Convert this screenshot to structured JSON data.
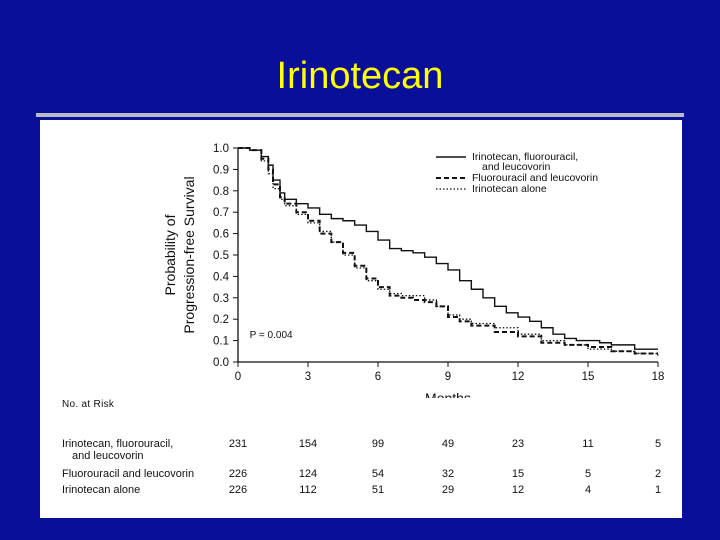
{
  "slide": {
    "title": "Irinotecan"
  },
  "chart_data": {
    "type": "line",
    "title": "",
    "xlabel": "Months",
    "ylabel_lines": [
      "Probability of",
      "Progression-free Survival"
    ],
    "xlim": [
      0,
      18
    ],
    "ylim": [
      0,
      1.0
    ],
    "xticks": [
      0,
      3,
      6,
      9,
      12,
      15,
      18
    ],
    "yticks": [
      "0.0",
      "0.1",
      "0.2",
      "0.3",
      "0.4",
      "0.5",
      "0.6",
      "0.7",
      "0.8",
      "0.9",
      "1.0"
    ],
    "annotation": "P = 0.004",
    "legend": {
      "placement": "top-right"
    },
    "series": [
      {
        "name": "Irinotecan, fluorouracil, and leucovorin",
        "legend_lines": [
          "Irinotecan, fluorouracil,",
          "and leucovorin"
        ],
        "style": "solid",
        "x": [
          0,
          0.5,
          1.0,
          1.3,
          1.5,
          1.8,
          2.0,
          2.5,
          3.0,
          3.5,
          4.0,
          4.5,
          5.0,
          5.5,
          6.0,
          6.5,
          7.0,
          7.5,
          8.0,
          8.5,
          9.0,
          9.5,
          10.0,
          10.5,
          11.0,
          11.5,
          12.0,
          12.5,
          13.0,
          13.5,
          14.0,
          14.5,
          15.0,
          15.5,
          16.0,
          17.0,
          18.0
        ],
        "y": [
          1.0,
          0.99,
          0.96,
          0.92,
          0.85,
          0.79,
          0.76,
          0.74,
          0.72,
          0.69,
          0.67,
          0.66,
          0.64,
          0.61,
          0.57,
          0.53,
          0.52,
          0.51,
          0.49,
          0.46,
          0.43,
          0.38,
          0.34,
          0.3,
          0.26,
          0.23,
          0.21,
          0.19,
          0.16,
          0.13,
          0.11,
          0.1,
          0.1,
          0.09,
          0.08,
          0.06,
          0.06
        ]
      },
      {
        "name": "Fluorouracil and leucovorin",
        "legend_lines": [
          "Fluorouracil and leucovorin"
        ],
        "style": "dashed",
        "x": [
          0,
          0.5,
          1.0,
          1.3,
          1.5,
          1.8,
          2.0,
          2.5,
          3.0,
          3.5,
          4.0,
          4.5,
          5.0,
          5.5,
          6.0,
          6.5,
          7.0,
          7.5,
          8.0,
          8.5,
          9.0,
          9.5,
          10.0,
          11.0,
          12.0,
          13.0,
          14.0,
          15.0,
          16.0,
          17.0,
          18.0
        ],
        "y": [
          1.0,
          0.99,
          0.95,
          0.9,
          0.83,
          0.77,
          0.74,
          0.7,
          0.66,
          0.6,
          0.56,
          0.51,
          0.45,
          0.39,
          0.35,
          0.31,
          0.3,
          0.29,
          0.28,
          0.26,
          0.21,
          0.19,
          0.17,
          0.14,
          0.12,
          0.09,
          0.08,
          0.07,
          0.05,
          0.04,
          0.04
        ]
      },
      {
        "name": "Irinotecan alone",
        "legend_lines": [
          "Irinotecan alone"
        ],
        "style": "dotted",
        "x": [
          0,
          0.5,
          1.0,
          1.3,
          1.5,
          1.8,
          2.0,
          2.5,
          3.0,
          3.5,
          4.0,
          4.5,
          5.0,
          5.5,
          6.0,
          6.5,
          7.0,
          7.5,
          8.0,
          8.5,
          9.0,
          9.5,
          10.0,
          11.0,
          12.0,
          13.0,
          14.0,
          15.0,
          16.0,
          17.0,
          18.0
        ],
        "y": [
          1.0,
          0.99,
          0.94,
          0.88,
          0.81,
          0.76,
          0.73,
          0.69,
          0.65,
          0.61,
          0.56,
          0.5,
          0.44,
          0.38,
          0.34,
          0.32,
          0.31,
          0.31,
          0.29,
          0.26,
          0.22,
          0.2,
          0.18,
          0.16,
          0.13,
          0.1,
          0.08,
          0.06,
          0.05,
          0.04,
          0.03
        ]
      }
    ]
  },
  "at_risk": {
    "header": "No. at Risk",
    "rows": [
      {
        "label_lines": [
          "Irinotecan, fluorouracil,",
          "and leucovorin"
        ],
        "values": [
          "231",
          "154",
          "99",
          "49",
          "23",
          "11",
          "5"
        ]
      },
      {
        "label_lines": [
          "Fluorouracil and leucovorin"
        ],
        "values": [
          "226",
          "124",
          "54",
          "32",
          "15",
          "5",
          "2"
        ]
      },
      {
        "label_lines": [
          "Irinotecan alone"
        ],
        "values": [
          "226",
          "112",
          "51",
          "29",
          "12",
          "4",
          "1"
        ]
      }
    ]
  }
}
